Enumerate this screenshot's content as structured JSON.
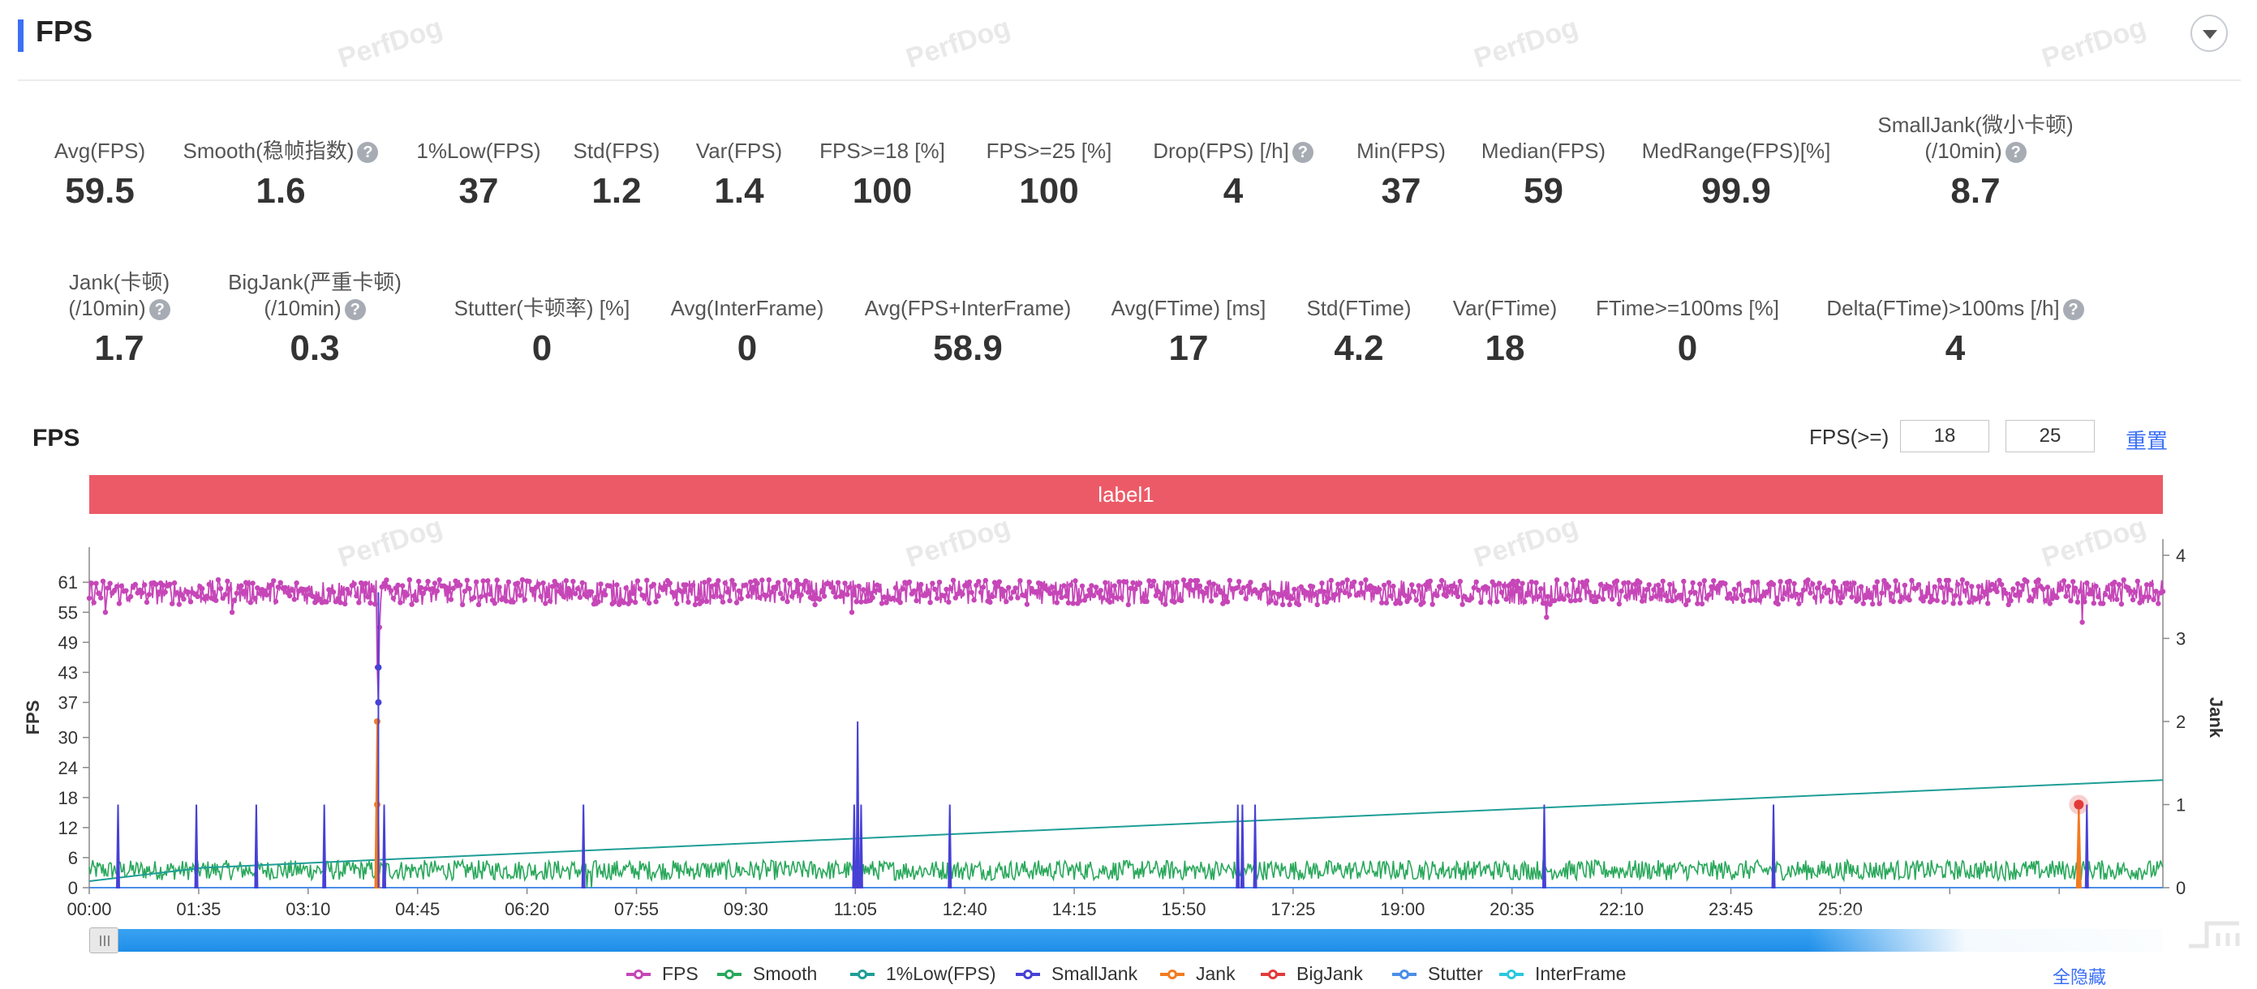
{
  "header": {
    "title": "FPS"
  },
  "watermark": "PerfDog",
  "metrics_row1": [
    {
      "label": "Avg(FPS)",
      "value": "59.5",
      "help": false
    },
    {
      "label": "Smooth(稳帧指数)",
      "value": "1.6",
      "help": true
    },
    {
      "label": "1%Low(FPS)",
      "value": "37",
      "help": false
    },
    {
      "label": "Std(FPS)",
      "value": "1.2",
      "help": false
    },
    {
      "label": "Var(FPS)",
      "value": "1.4",
      "help": false
    },
    {
      "label": "FPS>=18 [%]",
      "value": "100",
      "help": false
    },
    {
      "label": "FPS>=25 [%]",
      "value": "100",
      "help": false
    },
    {
      "label": "Drop(FPS) [/h]",
      "value": "4",
      "help": true
    },
    {
      "label": "Min(FPS)",
      "value": "37",
      "help": false
    },
    {
      "label": "Median(FPS)",
      "value": "59",
      "help": false
    },
    {
      "label": "MedRange(FPS)[%]",
      "value": "99.9",
      "help": false
    },
    {
      "label": "SmallJank(微小卡顿)",
      "label2": "(/10min)",
      "value": "8.7",
      "help": true
    }
  ],
  "metrics_row2": [
    {
      "label": "Jank(卡顿)",
      "label2": "(/10min)",
      "value": "1.7",
      "help": true
    },
    {
      "label": "BigJank(严重卡顿)",
      "label2": "(/10min)",
      "value": "0.3",
      "help": true
    },
    {
      "label": "Stutter(卡顿率) [%]",
      "value": "0",
      "help": false
    },
    {
      "label": "Avg(InterFrame)",
      "value": "0",
      "help": false
    },
    {
      "label": "Avg(FPS+InterFrame)",
      "value": "58.9",
      "help": false
    },
    {
      "label": "Avg(FTime) [ms]",
      "value": "17",
      "help": false
    },
    {
      "label": "Std(FTime)",
      "value": "4.2",
      "help": false
    },
    {
      "label": "Var(FTime)",
      "value": "18",
      "help": false
    },
    {
      "label": "FTime>=100ms [%]",
      "value": "0",
      "help": false
    },
    {
      "label": "Delta(FTime)>100ms [/h]",
      "value": "4",
      "help": true
    }
  ],
  "chart_section": {
    "title": "FPS",
    "threshold_label": "FPS(>=)",
    "threshold_1": "18",
    "threshold_2": "25",
    "reset_label": "重置",
    "label_bar": "label1",
    "hide_all_label": "全隐藏",
    "help_glyph": "?"
  },
  "chart_data": {
    "type": "line",
    "title": "",
    "ylabel": "FPS",
    "y2label": "Jank",
    "y_ticks": [
      0,
      6,
      12,
      18,
      24,
      30,
      37,
      43,
      49,
      55,
      61
    ],
    "y_tick_labels": [
      "0",
      "6",
      "12",
      "18",
      "24",
      "30",
      "37",
      "43",
      "49",
      "55",
      "61"
    ],
    "ylim": [
      0,
      68
    ],
    "y2_ticks": [
      0,
      1,
      2,
      3,
      4
    ],
    "y2lim": [
      0,
      4
    ],
    "x_tick_labels": [
      "00:00",
      "01:35",
      "03:10",
      "04:45",
      "06:20",
      "07:55",
      "09:30",
      "11:05",
      "12:40",
      "14:15",
      "15:50",
      "17:25",
      "19:00",
      "20:35",
      "22:10",
      "23:45",
      "25:20"
    ],
    "x_tick_seconds": [
      0,
      95,
      190,
      285,
      380,
      475,
      570,
      665,
      760,
      855,
      950,
      1045,
      1140,
      1235,
      1330,
      1425,
      1520
    ],
    "xlim_seconds": [
      0,
      1800
    ],
    "grid": false,
    "legend_position": "bottom-center",
    "series": [
      {
        "name": "FPS",
        "color": "#c646b8",
        "axis": "left",
        "typical": 59,
        "range": [
          56,
          61
        ],
        "dips": [
          {
            "t": 14,
            "v": 55
          },
          {
            "t": 124,
            "v": 55
          },
          {
            "t": 250,
            "v": 44
          },
          {
            "t": 251,
            "v": 37
          },
          {
            "t": 252,
            "v": 52
          },
          {
            "t": 662,
            "v": 55
          },
          {
            "t": 1265,
            "v": 54
          },
          {
            "t": 1730,
            "v": 53
          }
        ]
      },
      {
        "name": "Smooth",
        "color": "#29a85b",
        "axis": "left",
        "typical": 3.5,
        "range": [
          1.5,
          5.5
        ],
        "dips": [
          {
            "t": 432,
            "v": 0
          },
          {
            "t": 436,
            "v": 0
          }
        ]
      },
      {
        "name": "1%Low(FPS)",
        "color": "#1e9e96",
        "axis": "left",
        "points": [
          {
            "t": 0,
            "v": 1.3
          },
          {
            "t": 100,
            "v": 4
          },
          {
            "t": 1800,
            "v": 21.5
          }
        ]
      },
      {
        "name": "SmallJank",
        "color": "#4741d6",
        "axis": "right",
        "events": [
          {
            "t": 25,
            "v": 1
          },
          {
            "t": 93,
            "v": 1
          },
          {
            "t": 145,
            "v": 1
          },
          {
            "t": 204,
            "v": 1
          },
          {
            "t": 256,
            "v": 1
          },
          {
            "t": 429,
            "v": 1
          },
          {
            "t": 664,
            "v": 1
          },
          {
            "t": 667,
            "v": 2
          },
          {
            "t": 670,
            "v": 1
          },
          {
            "t": 747,
            "v": 1
          },
          {
            "t": 997,
            "v": 1
          },
          {
            "t": 1001,
            "v": 1
          },
          {
            "t": 1012,
            "v": 1
          },
          {
            "t": 1263,
            "v": 1
          },
          {
            "t": 1462,
            "v": 1
          },
          {
            "t": 1734,
            "v": 1
          }
        ]
      },
      {
        "name": "Jank",
        "color": "#f37b20",
        "axis": "right",
        "events": [
          {
            "t": 250,
            "v": 2
          },
          {
            "t": 1727,
            "v": 1
          }
        ]
      },
      {
        "name": "BigJank",
        "color": "#e23a3a",
        "axis": "right",
        "events": [
          {
            "t": 1727,
            "v": 1
          }
        ]
      },
      {
        "name": "Stutter",
        "color": "#4b8de8",
        "axis": "right",
        "constant": 0
      },
      {
        "name": "InterFrame",
        "color": "#2cc7df",
        "axis": "right",
        "constant": 0
      }
    ]
  }
}
